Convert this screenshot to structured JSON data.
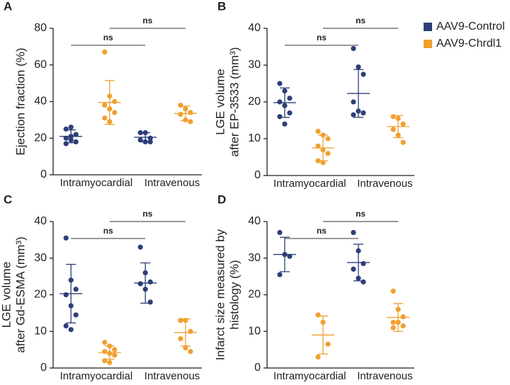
{
  "chart_data": [
    {
      "type": "dot",
      "label": "A",
      "ylabel": [
        "Ejection fraction (%)"
      ],
      "ylim": [
        0,
        80
      ],
      "yticks": [
        0,
        20,
        40,
        60,
        80
      ],
      "categories": [
        "Intramyocardial",
        "Intravenous"
      ],
      "series": [
        {
          "color": "#2d3e79",
          "values": [
            [
              25,
              26,
              22,
              20,
              19,
              18,
              17,
              21
            ],
            [
              23,
              23,
              20,
              19,
              18,
              18
            ]
          ],
          "mean": [
            21,
            20.5
          ],
          "sd": [
            3.5,
            2.5
          ]
        },
        {
          "color": "#f0a030",
          "values": [
            [
              67,
              43,
              40,
              38,
              36,
              34,
              31,
              29
            ],
            [
              38,
              36,
              34,
              33,
              30,
              29
            ]
          ],
          "mean": [
            39.5,
            33.5
          ],
          "sd": [
            12,
            4
          ]
        }
      ],
      "annotations": [
        "ns",
        "ns"
      ]
    },
    {
      "type": "dot",
      "label": "B",
      "ylabel": [
        "LGE volume",
        "after EP-3533 (mm³)"
      ],
      "ylim": [
        0,
        40
      ],
      "yticks": [
        0,
        10,
        20,
        30,
        40
      ],
      "categories": [
        "Intramyocardial",
        "Intravenous"
      ],
      "series": [
        {
          "name": "AAV9-Control",
          "color": "#2d3e79",
          "values": [
            [
              25,
              23,
              21,
              20,
              19,
              17,
              16,
              14
            ],
            [
              34.5,
              29.5,
              27.5,
              20,
              17.5,
              17,
              16.5
            ]
          ],
          "mean": [
            19.8,
            22.3
          ],
          "sd": [
            4,
            6.5
          ]
        },
        {
          "name": "AAV9-Chrdl1",
          "color": "#f0a030",
          "values": [
            [
              12,
              11,
              10,
              8,
              7,
              6,
              4,
              3.5
            ],
            [
              16,
              15.5,
              14,
              12.5,
              11,
              9
            ]
          ],
          "mean": [
            7.5,
            13.3
          ],
          "sd": [
            3.5,
            3
          ]
        }
      ],
      "annotations": [
        "ns",
        "ns"
      ]
    },
    {
      "type": "dot",
      "label": "C",
      "ylabel": [
        "LGE volume",
        "after Gd-ESMA (mm³)"
      ],
      "ylim": [
        0,
        40
      ],
      "yticks": [
        0,
        10,
        20,
        30,
        40
      ],
      "categories": [
        "Intramyocardial",
        "Intravenous"
      ],
      "series": [
        {
          "color": "#2d3e79",
          "values": [
            [
              35.5,
              24,
              21.5,
              20,
              17,
              14.5,
              11.5,
              10.5
            ],
            [
              33,
              26,
              23.5,
              23,
              21.5,
              18
            ]
          ],
          "mean": [
            20.3,
            23.2
          ],
          "sd": [
            8,
            5.5
          ]
        },
        {
          "color": "#f0a030",
          "values": [
            [
              7,
              6,
              5,
              4.5,
              4,
              3.5,
              2,
              1.5
            ],
            [
              13,
              13,
              10,
              8,
              5.5,
              4.5
            ]
          ],
          "mean": [
            4.2,
            9.7
          ],
          "sd": [
            1.8,
            3.7
          ]
        }
      ],
      "annotations": [
        "ns",
        "ns"
      ]
    },
    {
      "type": "dot",
      "label": "D",
      "ylabel": [
        "Infarct size measured by",
        "histology (%)"
      ],
      "ylim": [
        0,
        40
      ],
      "yticks": [
        0,
        10,
        20,
        30,
        40
      ],
      "categories": [
        "Intramyocardial",
        "Intravenous"
      ],
      "series": [
        {
          "color": "#2d3e79",
          "values": [
            [
              37,
              31,
              30.5,
              25.5
            ],
            [
              37,
              32,
              28.5,
              27,
              24.5,
              23.5
            ]
          ],
          "mean": [
            31,
            28.8
          ],
          "sd": [
            4.7,
            5
          ]
        },
        {
          "color": "#f0a030",
          "values": [
            [
              14.5,
              12.5,
              6.5,
              3
            ],
            [
              21,
              16,
              14,
              12.5,
              12.5,
              11.5,
              11
            ]
          ],
          "mean": [
            9,
            13.8
          ],
          "sd": [
            5.2,
            3.8
          ]
        }
      ],
      "annotations": [
        "ns",
        "ns"
      ]
    }
  ]
}
